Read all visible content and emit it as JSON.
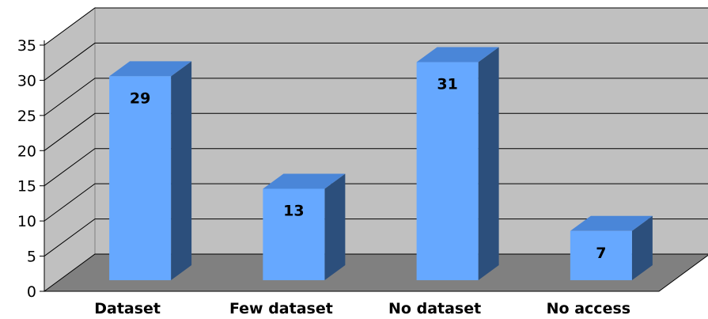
{
  "chart_data": {
    "type": "bar",
    "style": "3d-column",
    "categories": [
      "Dataset",
      "Few dataset",
      "No dataset",
      "No access"
    ],
    "values": [
      29,
      13,
      31,
      7
    ],
    "data_labels": [
      "29",
      "13",
      "31",
      "7"
    ],
    "title": "",
    "xlabel": "",
    "ylabel": "",
    "ylim": [
      0,
      35
    ],
    "yticks": [
      "0",
      "5",
      "10",
      "15",
      "20",
      "25",
      "30",
      "35"
    ],
    "grid": true,
    "legend": "none",
    "colors": {
      "bar_front": "#66a8ff",
      "bar_top": "#4a86d8",
      "bar_side": "#2c4f7c",
      "back_wall": "#c0c0c0",
      "side_wall": "#c0c0c0",
      "floor": "#808080",
      "gridline": "#000000"
    }
  }
}
